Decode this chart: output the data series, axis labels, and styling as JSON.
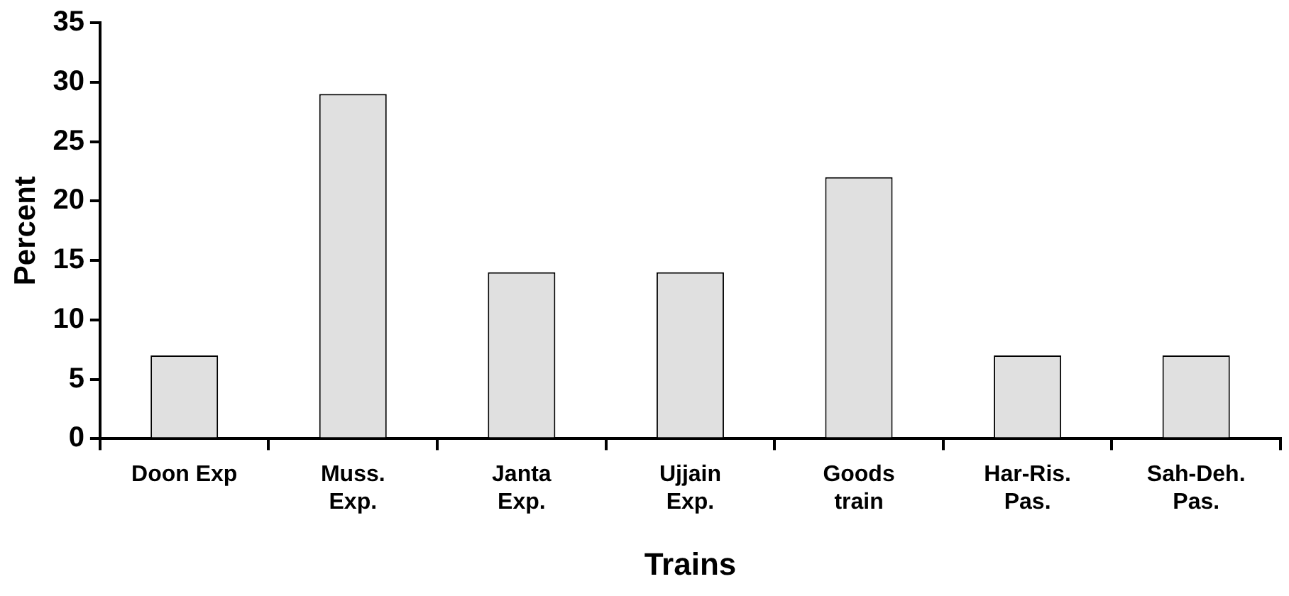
{
  "chart_data": {
    "type": "bar",
    "xlabel": "Trains",
    "ylabel": "Percent",
    "categories": [
      "Doon Exp",
      "Muss.\nExp.",
      "Janta\nExp.",
      "Ujjain\nExp.",
      "Goods\ntrain",
      "Har-Ris.\nPas.",
      "Sah-Deh.\nPas."
    ],
    "values": [
      7,
      29,
      14,
      14,
      22,
      7,
      7
    ],
    "color": "#e0e0e0",
    "ylim": [
      0,
      35
    ],
    "yticks": [
      0,
      5,
      10,
      15,
      20,
      25,
      30,
      35
    ],
    "grid": false,
    "legend": false
  }
}
